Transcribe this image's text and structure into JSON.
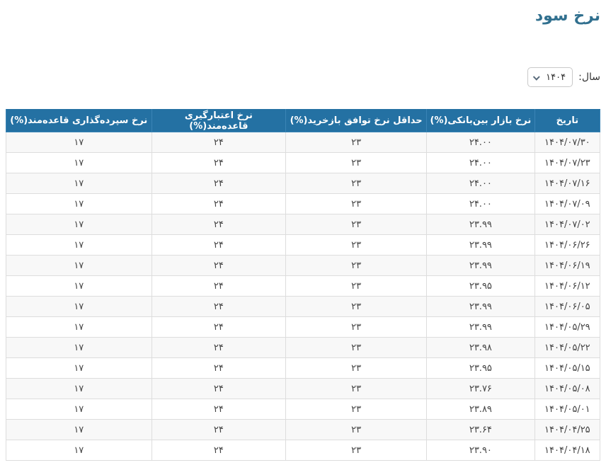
{
  "page": {
    "title": "نرخ سود"
  },
  "year_selector": {
    "label": "سال:",
    "selected_value": "۱۴۰۴",
    "chevron_icon": "chevron-down"
  },
  "colors": {
    "title_text": "#31708f",
    "table_header_bg": "#2471a3",
    "table_header_text": "#ffffff",
    "row_stripe": "#f8f8f8",
    "border": "#dddddd",
    "body_text": "#444444"
  },
  "table": {
    "columns": [
      {
        "key": "date",
        "label": "تاریخ"
      },
      {
        "key": "interbank",
        "label": "نرخ بازار بین‌بانکی(%)"
      },
      {
        "key": "repo_min",
        "label": "حداقل نرخ توافق بازخرید(%)"
      },
      {
        "key": "lending",
        "label": "نرخ اعتبارگیری قاعده‌مند(%)"
      },
      {
        "key": "deposit",
        "label": "نرخ سپرده‌گذاری قاعده‌مند(%)"
      }
    ],
    "rows": [
      [
        "۱۴۰۴/۰۷/۳۰",
        "۲۴.۰۰",
        "۲۳",
        "۲۴",
        "۱۷"
      ],
      [
        "۱۴۰۴/۰۷/۲۳",
        "۲۴.۰۰",
        "۲۳",
        "۲۴",
        "۱۷"
      ],
      [
        "۱۴۰۴/۰۷/۱۶",
        "۲۴.۰۰",
        "۲۳",
        "۲۴",
        "۱۷"
      ],
      [
        "۱۴۰۴/۰۷/۰۹",
        "۲۴.۰۰",
        "۲۳",
        "۲۴",
        "۱۷"
      ],
      [
        "۱۴۰۴/۰۷/۰۲",
        "۲۳.۹۹",
        "۲۳",
        "۲۴",
        "۱۷"
      ],
      [
        "۱۴۰۴/۰۶/۲۶",
        "۲۳.۹۹",
        "۲۳",
        "۲۴",
        "۱۷"
      ],
      [
        "۱۴۰۴/۰۶/۱۹",
        "۲۳.۹۹",
        "۲۳",
        "۲۴",
        "۱۷"
      ],
      [
        "۱۴۰۴/۰۶/۱۲",
        "۲۳.۹۵",
        "۲۳",
        "۲۴",
        "۱۷"
      ],
      [
        "۱۴۰۴/۰۶/۰۵",
        "۲۳.۹۹",
        "۲۳",
        "۲۴",
        "۱۷"
      ],
      [
        "۱۴۰۴/۰۵/۲۹",
        "۲۳.۹۹",
        "۲۳",
        "۲۴",
        "۱۷"
      ],
      [
        "۱۴۰۴/۰۵/۲۲",
        "۲۳.۹۸",
        "۲۳",
        "۲۴",
        "۱۷"
      ],
      [
        "۱۴۰۴/۰۵/۱۵",
        "۲۳.۹۵",
        "۲۳",
        "۲۴",
        "۱۷"
      ],
      [
        "۱۴۰۴/۰۵/۰۸",
        "۲۳.۷۶",
        "۲۳",
        "۲۴",
        "۱۷"
      ],
      [
        "۱۴۰۴/۰۵/۰۱",
        "۲۳.۸۹",
        "۲۳",
        "۲۴",
        "۱۷"
      ],
      [
        "۱۴۰۴/۰۴/۲۵",
        "۲۳.۶۴",
        "۲۳",
        "۲۴",
        "۱۷"
      ],
      [
        "۱۴۰۴/۰۴/۱۸",
        "۲۳.۹۰",
        "۲۳",
        "۲۴",
        "۱۷"
      ]
    ]
  }
}
